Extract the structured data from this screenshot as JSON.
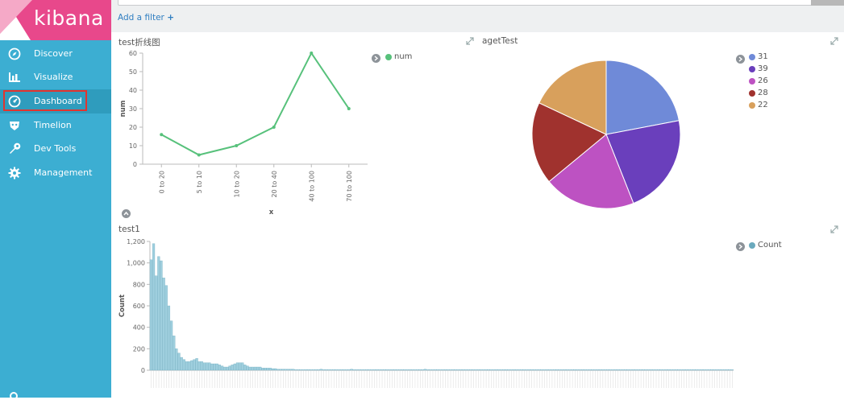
{
  "app": {
    "logo_text": "kibana"
  },
  "sidebar": {
    "items": [
      {
        "label": "Discover",
        "icon": "compass-icon"
      },
      {
        "label": "Visualize",
        "icon": "bar-chart-icon"
      },
      {
        "label": "Dashboard",
        "icon": "dashboard-gauge-icon",
        "active": true
      },
      {
        "label": "Timelion",
        "icon": "timelion-mask-icon"
      },
      {
        "label": "Dev Tools",
        "icon": "wrench-icon"
      },
      {
        "label": "Management",
        "icon": "gear-icon"
      }
    ]
  },
  "filters": {
    "add_label": "Add a filter",
    "add_icon": "+"
  },
  "colors": {
    "sidebar": "#3caed2",
    "logo_bg": "#e8488b",
    "line": "#57c17b",
    "bars": "#9fcfde",
    "bar_stroke": "#6aa9bd",
    "highlight": "#e3342f"
  },
  "panels": {
    "line": {
      "title": "test折线图"
    },
    "pie": {
      "title": "agetTest"
    },
    "hist": {
      "title": "test1"
    }
  },
  "chart_data": [
    {
      "type": "line",
      "title": "test折线图",
      "xlabel": "x",
      "ylabel": "num",
      "categories": [
        "0 to 20",
        "5 to 10",
        "10 to 20",
        "20 to 40",
        "40 to 100",
        "70 to 100"
      ],
      "series": [
        {
          "name": "num",
          "values": [
            16,
            5,
            10,
            20,
            60,
            30
          ],
          "color": "#57c17b"
        }
      ],
      "ylim": [
        0,
        60
      ],
      "yticks": [
        0,
        10,
        20,
        30,
        40,
        50,
        60
      ],
      "grid": false,
      "legend": "top-right"
    },
    {
      "type": "pie",
      "title": "agetTest",
      "slices": [
        {
          "label": "31",
          "value": 22,
          "color": "#6f8ad8"
        },
        {
          "label": "39",
          "value": 22,
          "color": "#6a3fbc"
        },
        {
          "label": "26",
          "value": 20,
          "color": "#bd52c2"
        },
        {
          "label": "28",
          "value": 18,
          "color": "#a0322e"
        },
        {
          "label": "22",
          "value": 18,
          "color": "#d8a05c"
        }
      ],
      "legend": "top-right"
    },
    {
      "type": "bar",
      "title": "test1",
      "ylabel": "Count",
      "ylim": [
        0,
        1200
      ],
      "yticks": [
        "0",
        "200",
        "400",
        "600",
        "800",
        "1,000",
        "1,200"
      ],
      "series": [
        {
          "name": "Count",
          "color": "#9fcfde"
        }
      ],
      "values": [
        1030,
        1180,
        880,
        1060,
        1020,
        860,
        790,
        600,
        460,
        320,
        200,
        160,
        120,
        100,
        80,
        80,
        90,
        100,
        110,
        80,
        80,
        70,
        70,
        70,
        60,
        60,
        60,
        50,
        40,
        30,
        30,
        40,
        50,
        60,
        70,
        70,
        70,
        50,
        40,
        30,
        30,
        30,
        30,
        30,
        20,
        20,
        20,
        20,
        15,
        15,
        10,
        10,
        10,
        10,
        10,
        10,
        10,
        5,
        5,
        5,
        5,
        5,
        5,
        5,
        5,
        5,
        5,
        10,
        5,
        5,
        5,
        5,
        5,
        5,
        5,
        5,
        5,
        5,
        5,
        10,
        5,
        5,
        5,
        5,
        5,
        5,
        5,
        5,
        5,
        5,
        5,
        5,
        5,
        5,
        5,
        5,
        5,
        5,
        5,
        5,
        5,
        5,
        5,
        5,
        5,
        5,
        5,
        5,
        10,
        5,
        5,
        5,
        5,
        5,
        5,
        5,
        5,
        5,
        5,
        5,
        5,
        5,
        5,
        5,
        5,
        5,
        5,
        5,
        5,
        5,
        5,
        5,
        5,
        5,
        5,
        5,
        5,
        5,
        5,
        5,
        5,
        5,
        5,
        5,
        5,
        5,
        5,
        5,
        5,
        5,
        5,
        5,
        5,
        5,
        5,
        5,
        5,
        5,
        5,
        5,
        5,
        5,
        5,
        5,
        5,
        5,
        5,
        5,
        5,
        5,
        5,
        5,
        5,
        5,
        5,
        5,
        5,
        5,
        5,
        5,
        5,
        5,
        5,
        5,
        5,
        5,
        5,
        5,
        5,
        5,
        5,
        5,
        5,
        5,
        5,
        5,
        5,
        5,
        5,
        5,
        5,
        5,
        5,
        5,
        5,
        5,
        5,
        5,
        5,
        5,
        5,
        5,
        5,
        5,
        5,
        5,
        5,
        5,
        5,
        5,
        5,
        5,
        5,
        5,
        5,
        5,
        5,
        5,
        5,
        5
      ],
      "grid": false,
      "legend": "top-right"
    }
  ]
}
